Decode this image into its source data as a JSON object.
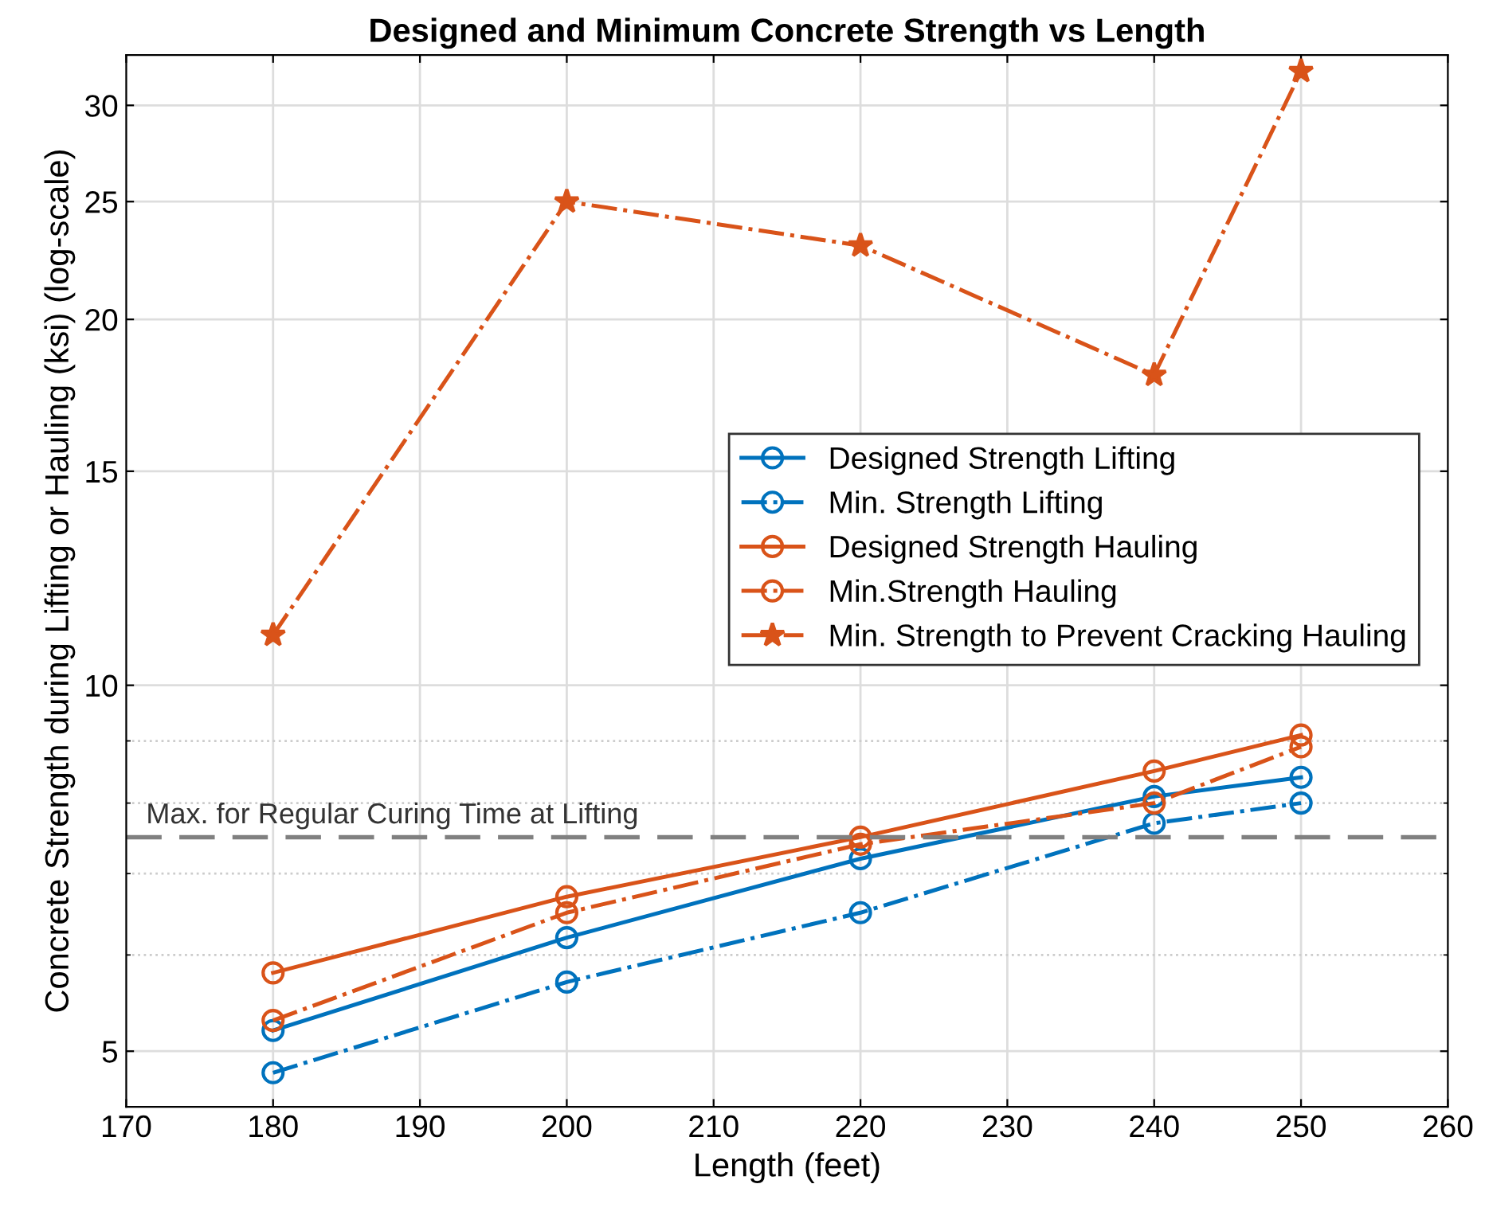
{
  "chart_data": {
    "type": "line",
    "title": "Designed and Minimum Concrete Strength vs Length",
    "xlabel": "Length (feet)",
    "ylabel": "Concrete Strength during Lifting or Hauling (ksi) (log-scale)",
    "x": [
      180,
      200,
      220,
      240,
      250
    ],
    "series": [
      {
        "name": "Designed Strength Lifting",
        "color": "#0072bd",
        "marker": "circle",
        "line_style": "solid",
        "values": [
          5.2,
          6.2,
          7.2,
          8.1,
          8.4
        ]
      },
      {
        "name": "Min. Strength Lifting",
        "color": "#0072bd",
        "marker": "circle",
        "line_style": "dashdot",
        "values": [
          4.8,
          5.7,
          6.5,
          7.7,
          8.0
        ]
      },
      {
        "name": "Designed Strength Hauling",
        "color": "#d95319",
        "marker": "circle",
        "line_style": "solid",
        "values": [
          5.8,
          6.7,
          7.5,
          8.5,
          9.1
        ]
      },
      {
        "name": "Min.Strength Hauling",
        "color": "#d95319",
        "marker": "circle",
        "line_style": "dashdot",
        "values": [
          5.3,
          6.5,
          7.4,
          8.0,
          8.9
        ]
      },
      {
        "name": "Min. Strength to Prevent Cracking Hauling",
        "color": "#d95319",
        "marker": "star",
        "line_style": "dashdot",
        "values": [
          11,
          25,
          23,
          18,
          32
        ]
      }
    ],
    "ref_lines": [
      {
        "axis": "y",
        "value": 7.5,
        "label": "Max. for Regular Curing Time at Lifting",
        "color": "#808080",
        "line_style": "dashed"
      }
    ],
    "log": "y",
    "xlim": [
      170,
      260
    ],
    "xticks": [
      170,
      180,
      190,
      200,
      210,
      220,
      230,
      240,
      250,
      260
    ],
    "ylim": [
      4.5,
      33
    ],
    "yticks": [
      5,
      10,
      15,
      20,
      25,
      30
    ],
    "grid": true,
    "legend": "right"
  }
}
